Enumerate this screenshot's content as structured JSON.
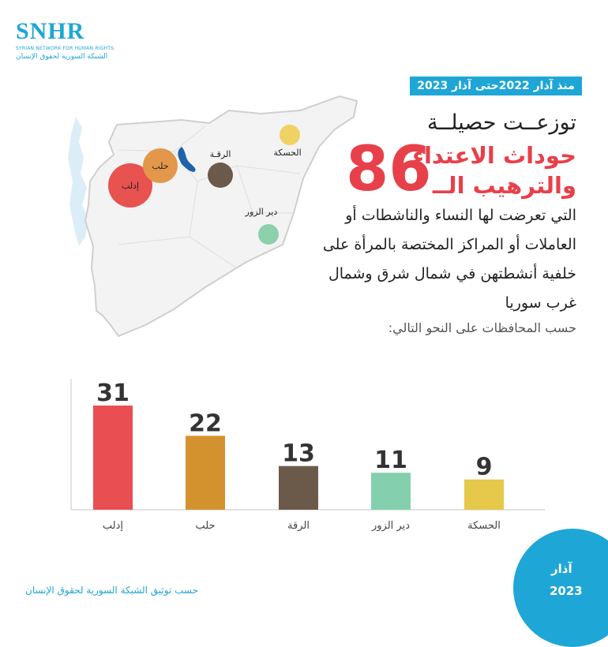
{
  "logo": {
    "main": "SNHR",
    "sub_en": "SYRIAN NETWORK FOR HUMAN RIGHTS",
    "sub_ar": "الشبكة السورية لحقوق الإنسان"
  },
  "period_label": "منذ آذار 2022حتى آذار 2023",
  "headline_line1": "توزعــت حصيلــة",
  "headline_line2": "حوداث الاعتداء والترهيب الــ",
  "total_number": "86",
  "description": "التي تعرضت لها النساء والناشطات أو العاملات أو المراكز المختصة بالمرأة على خلفية أنشطتهن في شمال شرق وشمال غرب سوريا",
  "subheading": "حسب المحافظات على النحو التالي:",
  "map": {
    "bubbles": [
      {
        "label": "إدلب",
        "color": "#e8524f"
      },
      {
        "label": "حلب",
        "color": "#e2974a"
      },
      {
        "label": "الرقـة",
        "color": "#6b5a4a"
      },
      {
        "label": "الحسكة",
        "color": "#efd264"
      },
      {
        "label": "دير الزور",
        "color": "#8dd1ac"
      }
    ]
  },
  "chart_data": {
    "type": "bar",
    "categories": [
      "إدلب",
      "حلب",
      "الرقة",
      "دير الزور",
      "الحسكة"
    ],
    "values": [
      31,
      22,
      13,
      11,
      9
    ],
    "colors": [
      "#e94f52",
      "#d4922e",
      "#6b5a4a",
      "#84d0ae",
      "#e6c84a"
    ],
    "title": "",
    "xlabel": "",
    "ylabel": "",
    "ylim": [
      0,
      31
    ]
  },
  "footer": "حسب توثيق الشبكة السورية لحقوق الإنسان",
  "corner": {
    "month": "آذار",
    "year": "2023"
  }
}
